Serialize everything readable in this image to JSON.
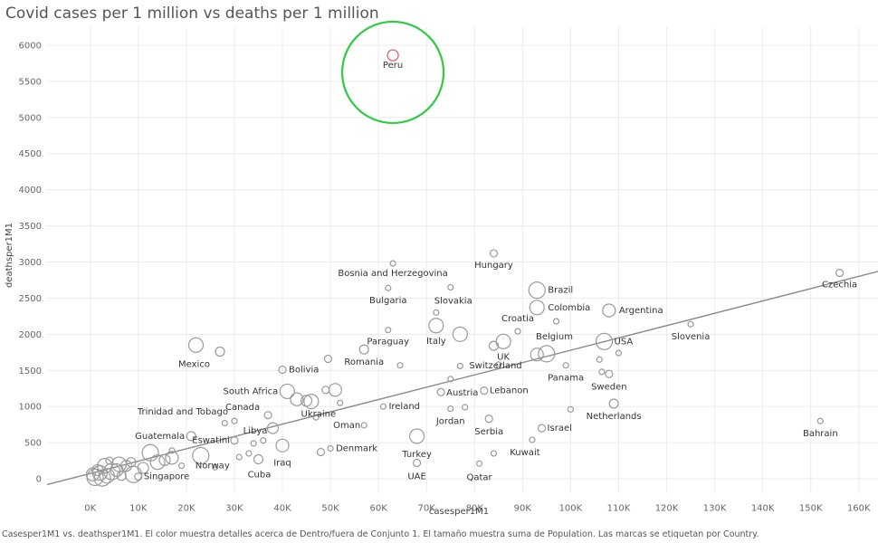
{
  "chart_data": {
    "type": "scatter",
    "title": "Covid cases per 1 million vs deaths per 1 million",
    "xlabel": "casesper1M1",
    "ylabel": "deathsper1M1",
    "caption": "Casesper1M1 vs. deathsper1M1. El color muestra detalles acerca de Dentro/fuera de Conjunto 1. El tamaño muestra suma de Population. Las marcas se etiquetan por Country.",
    "xlim": [
      -9000,
      164000
    ],
    "ylim": [
      -200,
      6250
    ],
    "x_ticks": [
      0,
      10000,
      20000,
      30000,
      40000,
      50000,
      60000,
      70000,
      80000,
      90000,
      100000,
      110000,
      120000,
      130000,
      140000,
      150000,
      160000
    ],
    "x_tick_labels": [
      "0K",
      "10K",
      "20K",
      "30K",
      "40K",
      "50K",
      "60K",
      "70K",
      "80K",
      "90K",
      "100K",
      "110K",
      "120K",
      "130K",
      "140K",
      "150K",
      "160K"
    ],
    "y_ticks": [
      0,
      500,
      1000,
      1500,
      2000,
      2500,
      3000,
      3500,
      4000,
      4500,
      5000,
      5500,
      6000
    ],
    "y_tick_labels": [
      "0",
      "500",
      "1000",
      "1500",
      "2000",
      "2500",
      "3000",
      "3500",
      "4000",
      "4500",
      "5000",
      "5500",
      "6000"
    ],
    "grid": true,
    "default_color": "#9a9a9a",
    "highlight_color": "#e06666",
    "annotation_color": "#2ecc40",
    "trendline": {
      "x": [
        -9000,
        164000
      ],
      "y": [
        -80,
        2870
      ]
    },
    "highlight_circle": {
      "x": 63000,
      "y": 5850,
      "label_ref": "Peru"
    },
    "points": [
      {
        "label": "Peru",
        "x": 63000,
        "y": 5860,
        "size": 6,
        "highlight": true
      },
      {
        "label": "Hungary",
        "x": 84000,
        "y": 3120,
        "size": 4
      },
      {
        "label": "Czechia",
        "x": 156000,
        "y": 2850,
        "size": 4
      },
      {
        "label": "Bosnia and Herzegovina",
        "x": 63000,
        "y": 2980,
        "size": 3
      },
      {
        "label": "Bulgaria",
        "x": 62000,
        "y": 2640,
        "size": 3
      },
      {
        "label": "Slovakia",
        "x": 75000,
        "y": 2650,
        "size": 3
      },
      {
        "label": "Brazil",
        "x": 93000,
        "y": 2610,
        "size": 9
      },
      {
        "label": "Colombia",
        "x": 93000,
        "y": 2370,
        "size": 8
      },
      {
        "label": "Argentina",
        "x": 108000,
        "y": 2330,
        "size": 7
      },
      {
        "label": "Croatia",
        "x": 89000,
        "y": 2040,
        "size": 3
      },
      {
        "label": "Slovenia",
        "x": 125000,
        "y": 2140,
        "size": 3
      },
      {
        "label": "Italy",
        "x": 72000,
        "y": 2120,
        "size": 8
      },
      {
        "label": "Paraguay",
        "x": 62000,
        "y": 2060,
        "size": 3
      },
      {
        "label": "Belgium",
        "x": 97000,
        "y": 2180,
        "size": 3
      },
      {
        "label": "USA",
        "x": 107000,
        "y": 1900,
        "size": 9
      },
      {
        "label": "UK",
        "x": 86000,
        "y": 1900,
        "size": 8
      },
      {
        "label": "Mexico",
        "x": 22000,
        "y": 1850,
        "size": 8
      },
      {
        "label": "Romania",
        "x": 57000,
        "y": 1790,
        "size": 5
      },
      {
        "label": "Bolivia",
        "x": 40000,
        "y": 1510,
        "size": 4
      },
      {
        "label": "Switzerland",
        "x": 84000,
        "y": 1840,
        "size": 5
      },
      {
        "label": "Panama",
        "x": 99000,
        "y": 1570,
        "size": 3
      },
      {
        "label": "Sweden",
        "x": 108000,
        "y": 1450,
        "size": 4
      },
      {
        "label": "South Africa",
        "x": 41000,
        "y": 1210,
        "size": 8
      },
      {
        "label": "Austria",
        "x": 73000,
        "y": 1200,
        "size": 4
      },
      {
        "label": "Lebanon",
        "x": 82000,
        "y": 1220,
        "size": 4
      },
      {
        "label": "Netherlands",
        "x": 109000,
        "y": 1040,
        "size": 5
      },
      {
        "label": "Trinidad and Tobago",
        "x": 30000,
        "y": 800,
        "size": 3
      },
      {
        "label": "Canada",
        "x": 37000,
        "y": 880,
        "size": 4
      },
      {
        "label": "Ireland",
        "x": 61000,
        "y": 1000,
        "size": 3
      },
      {
        "label": "Ukraine",
        "x": 46000,
        "y": 1070,
        "size": 8
      },
      {
        "label": "Jordan",
        "x": 75000,
        "y": 970,
        "size": 3
      },
      {
        "label": "Guatemala",
        "x": 21000,
        "y": 590,
        "size": 5
      },
      {
        "label": "Libya",
        "x": 38000,
        "y": 700,
        "size": 6
      },
      {
        "label": "Oman",
        "x": 57000,
        "y": 740,
        "size": 3
      },
      {
        "label": "Serbia",
        "x": 83000,
        "y": 830,
        "size": 4
      },
      {
        "label": "Israel",
        "x": 94000,
        "y": 700,
        "size": 4
      },
      {
        "label": "Bahrain",
        "x": 152000,
        "y": 800,
        "size": 3
      },
      {
        "label": "Eswatini",
        "x": 30000,
        "y": 530,
        "size": 4
      },
      {
        "label": "Kuwait",
        "x": 92000,
        "y": 540,
        "size": 3
      },
      {
        "label": "Turkey",
        "x": 68000,
        "y": 590,
        "size": 8
      },
      {
        "label": "Iraq",
        "x": 40000,
        "y": 460,
        "size": 7
      },
      {
        "label": "Denmark",
        "x": 50000,
        "y": 420,
        "size": 3
      },
      {
        "label": "Cuba",
        "x": 35000,
        "y": 270,
        "size": 5
      },
      {
        "label": "UAE",
        "x": 68000,
        "y": 220,
        "size": 4
      },
      {
        "label": "Qatar",
        "x": 81000,
        "y": 210,
        "size": 3
      },
      {
        "label": "Singapore",
        "x": 10000,
        "y": 30,
        "size": 4
      },
      {
        "label": "Norway",
        "x": 23000,
        "y": 320,
        "size": 9
      },
      {
        "label": "",
        "x": 49000,
        "y": 1230,
        "size": 4
      },
      {
        "label": "",
        "x": 51000,
        "y": 1230,
        "size": 7
      },
      {
        "label": "",
        "x": 49500,
        "y": 1660,
        "size": 4
      },
      {
        "label": "",
        "x": 27000,
        "y": 1760,
        "size": 5
      },
      {
        "label": "",
        "x": 64500,
        "y": 1570,
        "size": 3
      },
      {
        "label": "",
        "x": 77000,
        "y": 1560,
        "size": 3
      },
      {
        "label": "",
        "x": 85000,
        "y": 1580,
        "size": 3
      },
      {
        "label": "",
        "x": 95000,
        "y": 1730,
        "size": 9
      },
      {
        "label": "",
        "x": 93000,
        "y": 1720,
        "size": 7
      },
      {
        "label": "",
        "x": 106000,
        "y": 1650,
        "size": 3
      },
      {
        "label": "",
        "x": 110000,
        "y": 1740,
        "size": 3
      },
      {
        "label": "",
        "x": 106500,
        "y": 1480,
        "size": 3
      },
      {
        "label": "",
        "x": 77000,
        "y": 2000,
        "size": 8
      },
      {
        "label": "",
        "x": 72000,
        "y": 2300,
        "size": 3
      },
      {
        "label": "",
        "x": 45000,
        "y": 1080,
        "size": 6
      },
      {
        "label": "",
        "x": 43000,
        "y": 1100,
        "size": 7
      },
      {
        "label": "",
        "x": 47000,
        "y": 850,
        "size": 3
      },
      {
        "label": "",
        "x": 100000,
        "y": 960,
        "size": 3
      },
      {
        "label": "",
        "x": 78000,
        "y": 990,
        "size": 3
      },
      {
        "label": "",
        "x": 75000,
        "y": 1380,
        "size": 3
      },
      {
        "label": "",
        "x": 52000,
        "y": 1050,
        "size": 3
      },
      {
        "label": "",
        "x": 34000,
        "y": 490,
        "size": 3
      },
      {
        "label": "",
        "x": 36000,
        "y": 530,
        "size": 3
      },
      {
        "label": "",
        "x": 28000,
        "y": 770,
        "size": 3
      },
      {
        "label": "",
        "x": 48000,
        "y": 370,
        "size": 4
      },
      {
        "label": "",
        "x": 84000,
        "y": 350,
        "size": 3
      },
      {
        "label": "",
        "x": 33000,
        "y": 350,
        "size": 3
      },
      {
        "label": "",
        "x": 26000,
        "y": 160,
        "size": 3
      },
      {
        "label": "",
        "x": 31000,
        "y": 300,
        "size": 3
      },
      {
        "label": "",
        "x": 17000,
        "y": 390,
        "size": 3
      },
      {
        "label": "",
        "x": 19000,
        "y": 180,
        "size": 3
      },
      {
        "label": "",
        "x": 12500,
        "y": 360,
        "size": 9
      },
      {
        "label": "",
        "x": 14000,
        "y": 230,
        "size": 8
      },
      {
        "label": "",
        "x": 17000,
        "y": 290,
        "size": 7
      },
      {
        "label": "",
        "x": 15500,
        "y": 260,
        "size": 6
      },
      {
        "label": "",
        "x": 11000,
        "y": 150,
        "size": 6
      },
      {
        "label": "",
        "x": 9000,
        "y": 60,
        "size": 9
      },
      {
        "label": "",
        "x": 6000,
        "y": 200,
        "size": 8
      },
      {
        "label": "",
        "x": 7500,
        "y": 180,
        "size": 6
      },
      {
        "label": "",
        "x": 3000,
        "y": 180,
        "size": 8
      },
      {
        "label": "",
        "x": 4500,
        "y": 100,
        "size": 9
      },
      {
        "label": "",
        "x": 2000,
        "y": 80,
        "size": 8
      },
      {
        "label": "",
        "x": 1000,
        "y": 20,
        "size": 9
      },
      {
        "label": "",
        "x": 500,
        "y": 60,
        "size": 7
      },
      {
        "label": "",
        "x": 2500,
        "y": 10,
        "size": 9
      },
      {
        "label": "",
        "x": 3500,
        "y": 40,
        "size": 8
      },
      {
        "label": "",
        "x": 5500,
        "y": 120,
        "size": 7
      },
      {
        "label": "",
        "x": 1500,
        "y": 120,
        "size": 6
      },
      {
        "label": "",
        "x": 8500,
        "y": 230,
        "size": 5
      },
      {
        "label": "",
        "x": 4000,
        "y": 250,
        "size": 4
      },
      {
        "label": "",
        "x": 6500,
        "y": 40,
        "size": 5
      }
    ]
  }
}
